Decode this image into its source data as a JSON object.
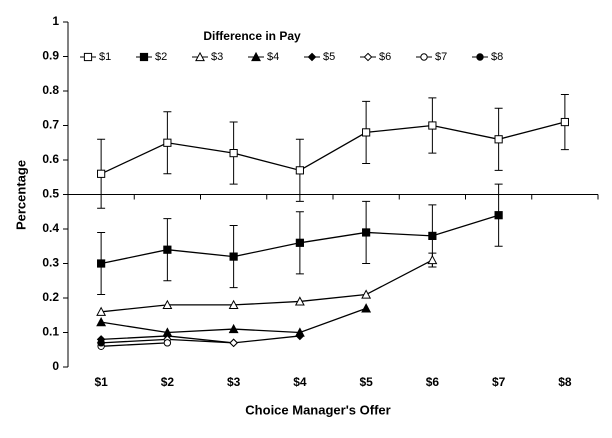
{
  "chart_data": {
    "type": "line",
    "x_label": "Choice Manager's Offer",
    "y_label": "Percentage",
    "legend_title": "Difference in Pay",
    "legend_position": "top-left",
    "categories": [
      "$1",
      "$2",
      "$3",
      "$4",
      "$5",
      "$6",
      "$7",
      "$8"
    ],
    "ylim": [
      0,
      1
    ],
    "yticks": [
      0,
      0.1,
      0.2,
      0.3,
      0.4,
      0.5,
      0.6,
      0.7,
      0.8,
      0.9,
      1
    ],
    "x_axis_crosses": 0.5,
    "grid": false,
    "series": [
      {
        "name": "$1",
        "color": "#000000",
        "marker": "square",
        "filled": false,
        "values": [
          0.56,
          0.65,
          0.62,
          0.57,
          0.68,
          0.7,
          0.66,
          0.71
        ],
        "errors": [
          0.1,
          0.09,
          0.09,
          0.09,
          0.09,
          0.08,
          0.09,
          0.08
        ]
      },
      {
        "name": "$2",
        "color": "#000000",
        "marker": "square",
        "filled": true,
        "values": [
          0.3,
          0.34,
          0.32,
          0.36,
          0.39,
          0.38,
          0.44,
          null
        ],
        "errors": [
          0.09,
          0.09,
          0.09,
          0.09,
          0.09,
          0.09,
          0.09,
          null
        ]
      },
      {
        "name": "$3",
        "color": "#000000",
        "marker": "triangle",
        "filled": false,
        "values": [
          0.16,
          0.18,
          0.18,
          0.19,
          0.21,
          0.31,
          null,
          null
        ],
        "errors": [
          null,
          null,
          null,
          null,
          null,
          0.02,
          null,
          null
        ]
      },
      {
        "name": "$4",
        "color": "#000000",
        "marker": "triangle",
        "filled": true,
        "values": [
          0.13,
          0.1,
          0.11,
          0.1,
          0.17,
          null,
          null,
          null
        ]
      },
      {
        "name": "$5",
        "color": "#000000",
        "marker": "diamond",
        "filled": true,
        "values": [
          0.08,
          0.09,
          0.07,
          0.09,
          null,
          null,
          null,
          null
        ]
      },
      {
        "name": "$6",
        "color": "#000000",
        "marker": "diamond",
        "filled": false,
        "values": [
          0.07,
          0.08,
          0.07,
          null,
          null,
          null,
          null,
          null
        ]
      },
      {
        "name": "$7",
        "color": "#000000",
        "marker": "circle",
        "filled": false,
        "values": [
          0.06,
          0.07,
          null,
          null,
          null,
          null,
          null,
          null
        ]
      },
      {
        "name": "$8",
        "color": "#000000",
        "marker": "circle",
        "filled": true,
        "values": [
          0.07,
          null,
          null,
          null,
          null,
          null,
          null,
          null
        ]
      }
    ]
  }
}
